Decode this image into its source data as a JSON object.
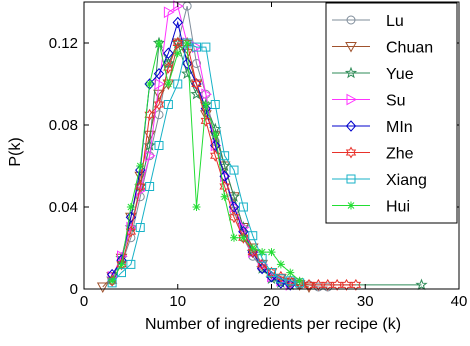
{
  "chart_data": {
    "type": "line",
    "title": "",
    "xlabel": "Number of ingredients per recipe (k)",
    "ylabel": "P(k)",
    "xlim": [
      0,
      40
    ],
    "ylim": [
      0,
      0.14
    ],
    "xticks": [
      0,
      10,
      20,
      30,
      40
    ],
    "yticks": [
      0,
      0.04,
      0.08,
      0.12
    ],
    "xtick_labels": [
      "0",
      "10",
      "20",
      "30",
      "40"
    ],
    "ytick_labels": [
      "0",
      "0.04",
      "0.08",
      "0.12"
    ],
    "grid": false,
    "legend_position": "top-right",
    "series": [
      {
        "name": "Lu",
        "color": "#7f8c9a",
        "marker": "circle",
        "x": [
          3,
          4,
          5,
          6,
          7,
          8,
          9,
          10,
          11,
          12,
          13,
          14,
          15,
          16,
          17,
          18,
          19,
          20,
          21,
          22,
          23,
          24,
          25,
          26
        ],
        "y": [
          0.004,
          0.012,
          0.025,
          0.045,
          0.065,
          0.085,
          0.11,
          0.12,
          0.138,
          0.11,
          0.095,
          0.072,
          0.055,
          0.038,
          0.025,
          0.016,
          0.01,
          0.006,
          0.004,
          0.003,
          0.002,
          0.002,
          0.001,
          0.001
        ]
      },
      {
        "name": "Chuan",
        "color": "#a0522d",
        "marker": "triangle-down",
        "x": [
          2,
          3,
          4,
          5,
          6,
          7,
          8,
          9,
          10,
          11,
          12,
          13,
          14,
          15,
          16,
          17,
          18,
          19,
          20,
          21,
          22,
          23,
          24
        ],
        "y": [
          0.001,
          0.006,
          0.015,
          0.035,
          0.055,
          0.075,
          0.095,
          0.1,
          0.12,
          0.115,
          0.1,
          0.085,
          0.075,
          0.06,
          0.045,
          0.03,
          0.02,
          0.012,
          0.008,
          0.005,
          0.003,
          0.002,
          0.001
        ]
      },
      {
        "name": "Yue",
        "color": "#2e8b57",
        "marker": "star",
        "x": [
          3,
          4,
          5,
          6,
          7,
          8,
          9,
          10,
          11,
          12,
          13,
          14,
          15,
          16,
          17,
          18,
          19,
          20,
          21,
          22,
          36
        ],
        "y": [
          0.005,
          0.015,
          0.03,
          0.05,
          0.07,
          0.12,
          0.11,
          0.12,
          0.105,
          0.095,
          0.09,
          0.078,
          0.06,
          0.045,
          0.03,
          0.018,
          0.01,
          0.005,
          0.003,
          0.002,
          0.002
        ]
      },
      {
        "name": "Su",
        "color": "#ff33ff",
        "marker": "triangle-right",
        "x": [
          3,
          4,
          5,
          6,
          7,
          8,
          9,
          10,
          11,
          12,
          13,
          14,
          15,
          16,
          17,
          18,
          19,
          20,
          21,
          22
        ],
        "y": [
          0.006,
          0.016,
          0.03,
          0.048,
          0.065,
          0.1,
          0.135,
          0.138,
          0.12,
          0.118,
          0.095,
          0.07,
          0.055,
          0.04,
          0.03,
          0.018,
          0.012,
          0.006,
          0.004,
          0.002
        ]
      },
      {
        "name": "MIn",
        "color": "#0000cc",
        "marker": "diamond",
        "x": [
          3,
          4,
          5,
          6,
          7,
          8,
          9,
          10,
          11,
          12,
          13,
          14,
          15,
          16,
          17,
          18,
          19,
          20,
          21,
          22
        ],
        "y": [
          0.007,
          0.014,
          0.035,
          0.058,
          0.1,
          0.105,
          0.115,
          0.13,
          0.11,
          0.1,
          0.088,
          0.07,
          0.055,
          0.04,
          0.028,
          0.018,
          0.01,
          0.006,
          0.003,
          0.002
        ]
      },
      {
        "name": "Zhe",
        "color": "#e8312a",
        "marker": "hexagram",
        "x": [
          3,
          4,
          5,
          6,
          7,
          8,
          9,
          10,
          11,
          12,
          13,
          14,
          15,
          16,
          17,
          18,
          19,
          20,
          21,
          22,
          23,
          24,
          25,
          26,
          27,
          28,
          29
        ],
        "y": [
          0.004,
          0.012,
          0.028,
          0.05,
          0.085,
          0.09,
          0.108,
          0.12,
          0.12,
          0.1,
          0.082,
          0.065,
          0.05,
          0.035,
          0.025,
          0.018,
          0.012,
          0.008,
          0.006,
          0.004,
          0.003,
          0.002,
          0.002,
          0.002,
          0.002,
          0.002,
          0.002
        ]
      },
      {
        "name": "Xiang",
        "color": "#17b2c7",
        "marker": "square",
        "x": [
          3,
          4,
          5,
          6,
          7,
          8,
          9,
          10,
          11,
          12,
          13,
          14,
          15,
          16,
          17,
          18,
          19,
          20,
          21,
          22,
          23
        ],
        "y": [
          0.003,
          0.008,
          0.012,
          0.03,
          0.05,
          0.07,
          0.09,
          0.1,
          0.12,
          0.118,
          0.118,
          0.09,
          0.065,
          0.058,
          0.04,
          0.026,
          0.015,
          0.008,
          0.005,
          0.004,
          0.003
        ]
      },
      {
        "name": "Hui",
        "color": "#22dd33",
        "marker": "asterisk",
        "x": [
          3,
          4,
          5,
          6,
          7,
          8,
          9,
          10,
          11,
          12,
          13,
          14,
          15,
          16,
          17,
          18,
          19,
          20,
          21,
          22,
          23
        ],
        "y": [
          0.004,
          0.012,
          0.04,
          0.06,
          0.1,
          0.12,
          0.1,
          0.115,
          0.12,
          0.04,
          0.09,
          0.075,
          0.045,
          0.025,
          0.025,
          0.02,
          0.018,
          0.018,
          0.012,
          0.008,
          0.004
        ]
      }
    ]
  }
}
